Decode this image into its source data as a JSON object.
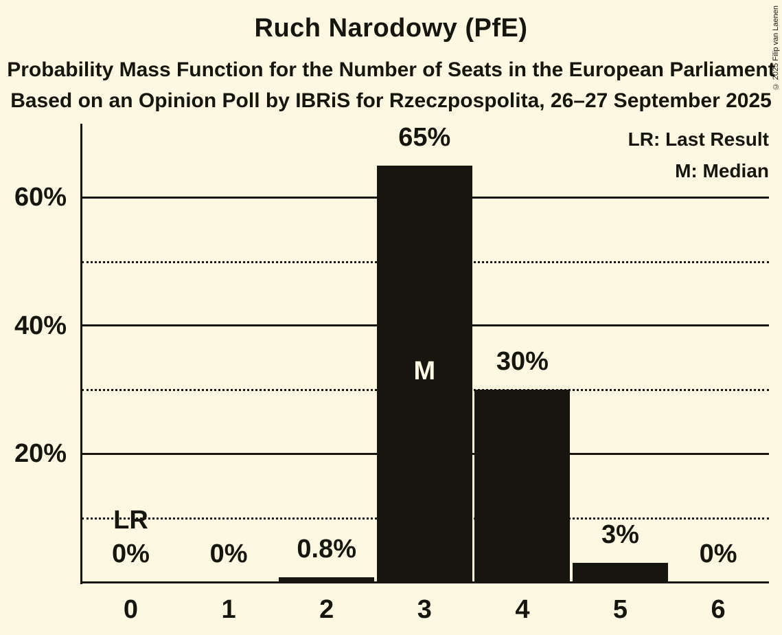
{
  "title": "Ruch Narodowy (PfE)",
  "subtitle": "Probability Mass Function for the Number of Seats in the European Parliament",
  "source_line": "Based on an Opinion Poll by IBRiS for Rzeczpospolita, 26–27 September 2025",
  "copyright": "© 2025 Filip van Laenen",
  "legend": {
    "lr": "LR: Last Result",
    "m": "M: Median"
  },
  "colors": {
    "background": "#FDF8E1",
    "ink": "#16160F"
  },
  "chart_data": {
    "type": "bar",
    "title": "Ruch Narodowy (PfE)",
    "xlabel": "",
    "ylabel": "",
    "categories": [
      "0",
      "1",
      "2",
      "3",
      "4",
      "5",
      "6"
    ],
    "values": [
      0,
      0,
      0.8,
      65,
      30,
      3,
      0
    ],
    "bar_labels": [
      "0%",
      "0%",
      "0.8%",
      "65%",
      "30%",
      "3%",
      "0%"
    ],
    "ylim": [
      0,
      71.5
    ],
    "yticks": [
      {
        "value": 20,
        "label": "20%"
      },
      {
        "value": 40,
        "label": "40%"
      },
      {
        "value": 60,
        "label": "60%"
      }
    ],
    "solid_gridlines": [
      20,
      40,
      60
    ],
    "dotted_gridlines": [
      10,
      30,
      50
    ],
    "median": {
      "seat_index": 3,
      "marker": "M"
    },
    "last_result": {
      "seat_index": 0,
      "marker": "LR"
    },
    "legend_position": "top-right",
    "grid": "horizontal-only",
    "bar_color": "#16160F"
  }
}
